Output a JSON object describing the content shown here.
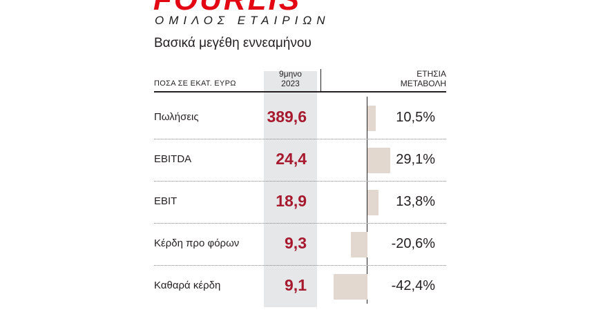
{
  "logo": {
    "brand": "FOURLIS",
    "tagline": "ΟΜΙΛΟΣ ΕΤΑΙΡΙΩΝ",
    "color": "#e30613"
  },
  "title": "Βασικά μεγέθη εννεαμήνου",
  "header": {
    "label": "ΠΟΣΑ ΣΕ ΕΚΑΤ. ΕΥΡΩ",
    "period_line1": "9μηνο",
    "period_line2": "2023",
    "change_line1": "ΕΤΗΣΙΑ",
    "change_line2": "ΜΕΤΑΒΟΛΗ"
  },
  "colors": {
    "value_text": "#a6192e",
    "bar": "#e3d8cf",
    "column_shade": "#e6e7e8"
  },
  "chart_data": {
    "type": "table",
    "title": "Βασικά μεγέθη εννεαμήνου",
    "columns": [
      "ΠΟΣΑ ΣΕ ΕΚΑΤ. ΕΥΡΩ",
      "9μηνο 2023",
      "ΕΤΗΣΙΑ ΜΕΤΑΒΟΛΗ"
    ],
    "rows": [
      {
        "label": "Πωλήσεις",
        "value": "389,6",
        "change": "10,5%",
        "change_num": 10.5
      },
      {
        "label": "EBITDA",
        "value": "24,4",
        "change": "29,1%",
        "change_num": 29.1
      },
      {
        "label": "EBIT",
        "value": "18,9",
        "change": "13,8%",
        "change_num": 13.8
      },
      {
        "label": "Κέρδη προ φόρων",
        "value": "9,3",
        "change": "-20,6%",
        "change_num": -20.6
      },
      {
        "label": "Καθαρά κέρδη",
        "value": "9,1",
        "change": "-42,4%",
        "change_num": -42.4
      }
    ]
  }
}
